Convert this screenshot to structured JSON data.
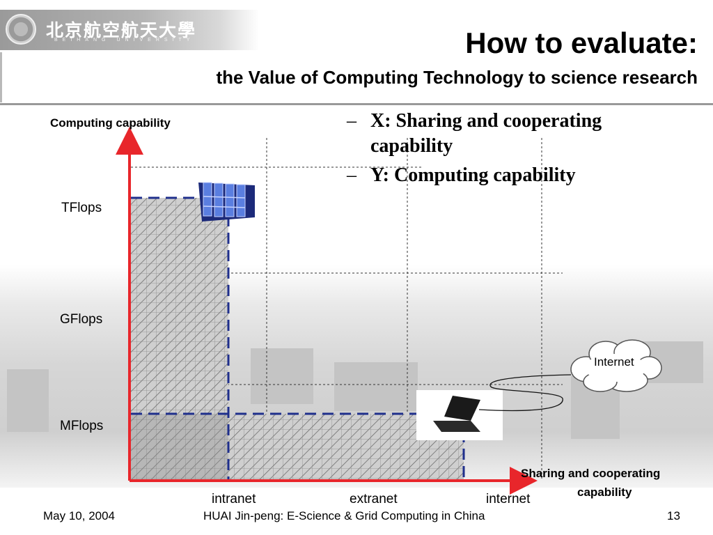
{
  "header": {
    "logo_cn": "北京航空航天大學",
    "logo_en": "BEIHANG UNIVERSITY",
    "title": "How to evaluate:",
    "subtitle": "the Value of Computing Technology to science research"
  },
  "bullets": [
    {
      "dash": "–",
      "text": "X: Sharing and cooperating capability"
    },
    {
      "dash": "–",
      "text": "Y: Computing capability"
    }
  ],
  "diagram": {
    "y_axis_label": "Computing capability",
    "x_axis_label_line1": "Sharing and cooperating",
    "x_axis_label_line2": "capability",
    "y_levels": [
      "TFlops",
      "GFlops",
      "MFlops"
    ],
    "x_levels": [
      "intranet",
      "extranet",
      "internet"
    ],
    "cloud_label": "Internet",
    "supercomputer_icon": "supercomputer-icon",
    "laptop_icon": "laptop-icon",
    "cloud_icon": "cloud-icon",
    "colors": {
      "axis": "#e8262b",
      "boundary": "#1f2f8c",
      "hatch": "#707070",
      "fill": "#cfcfcf"
    }
  },
  "footer": {
    "date": "May 10, 2004",
    "center": "HUAI Jin-peng: E-Science & Grid Computing in China",
    "page": "13"
  }
}
